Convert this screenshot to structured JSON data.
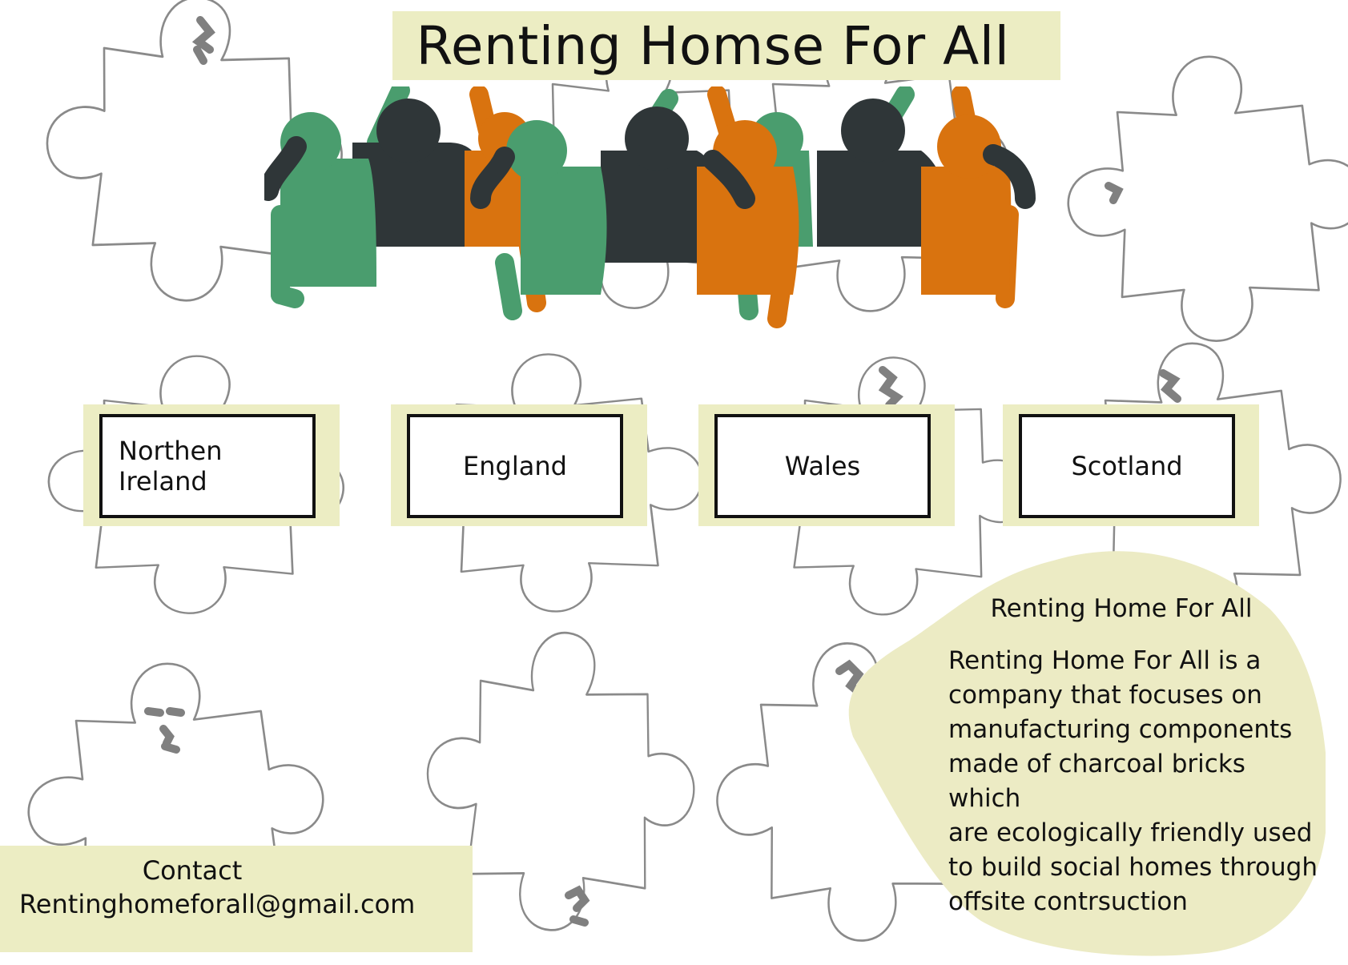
{
  "header": {
    "title": "Renting Homse For All"
  },
  "regions": [
    {
      "label": "Northen Ireland"
    },
    {
      "label": "England"
    },
    {
      "label": "Wales"
    },
    {
      "label": "Scotland"
    }
  ],
  "about": {
    "title": "Renting Home For All",
    "body": "Renting Home For All is a\ncompany that focuses on\nmanufacturing components\nmade of charcoal bricks which\nare ecologically  friendly  used\n to build social homes through\noffsite contrsuction"
  },
  "contact": {
    "label": "Contact",
    "email": "Rentinghomeforall@gmail.com"
  },
  "colors": {
    "band": "#ecedc3",
    "green": "#4a9d6e",
    "dark": "#2f3638",
    "orange": "#d9730f",
    "puzzle_outline": "#8a8a8a",
    "puzzle_mark": "#808080"
  },
  "icons": [
    "puzzle-piece-icon",
    "people-group-icon"
  ]
}
